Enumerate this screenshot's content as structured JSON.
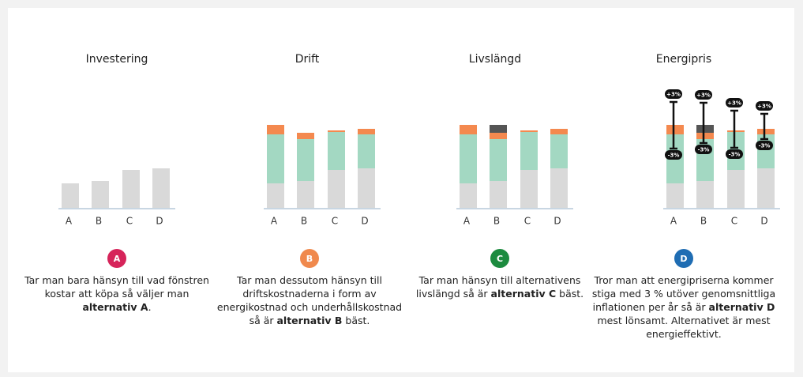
{
  "chart_data": [
    {
      "type": "bar",
      "title": "Investering",
      "categories": [
        "A",
        "B",
        "C",
        "D"
      ],
      "values": [
        31,
        34,
        48,
        50
      ],
      "color": "#d9d9d9",
      "ylim": [
        0,
        140
      ]
    },
    {
      "type": "stacked_bar",
      "title": "Drift",
      "categories": [
        "A",
        "B",
        "C",
        "D"
      ],
      "ylim": [
        0,
        140
      ],
      "series": [
        {
          "color": "#d9d9d9",
          "values": [
            31,
            34,
            48,
            50
          ]
        },
        {
          "color": "#a3d8c2",
          "values": [
            62,
            53,
            48,
            43
          ]
        },
        {
          "color": "#f4894f",
          "values": [
            12,
            8,
            2,
            7
          ]
        }
      ]
    },
    {
      "type": "stacked_bar",
      "title": "Livslängd",
      "categories": [
        "A",
        "B",
        "C",
        "D"
      ],
      "ylim": [
        0,
        140
      ],
      "series": [
        {
          "color": "#d9d9d9",
          "values": [
            31,
            34,
            48,
            50
          ]
        },
        {
          "color": "#a3d8c2",
          "values": [
            62,
            53,
            48,
            43
          ]
        },
        {
          "color": "#f4894f",
          "values": [
            12,
            8,
            2,
            7
          ]
        },
        {
          "color": "#555555",
          "values": [
            0,
            10,
            0,
            0
          ]
        }
      ]
    },
    {
      "type": "stacked_bar",
      "title": "Energipris",
      "categories": [
        "A",
        "B",
        "C",
        "D"
      ],
      "ylim": [
        0,
        140
      ],
      "series": [
        {
          "color": "#d9d9d9",
          "values": [
            31,
            34,
            48,
            50
          ]
        },
        {
          "color": "#a3d8c2",
          "values": [
            62,
            53,
            48,
            43
          ]
        },
        {
          "color": "#f4894f",
          "values": [
            12,
            8,
            2,
            7
          ]
        },
        {
          "color": "#555555",
          "values": [
            0,
            10,
            0,
            0
          ]
        }
      ],
      "ranges": {
        "high": [
          134,
          133,
          123,
          119
        ],
        "low": [
          75,
          82,
          76,
          87
        ],
        "high_label": "+3%",
        "low_label": "-3%"
      }
    }
  ],
  "panels": [
    {
      "badge": "A",
      "color": "#d6245a",
      "parts": [
        {
          "text": "Tar man bara hänsyn till vad fönstren kostar att köpa så väljer man ",
          "bold": false
        },
        {
          "text": "alternativ A",
          "bold": true
        },
        {
          "text": ".",
          "bold": false
        }
      ]
    },
    {
      "badge": "B",
      "color": "#f0894d",
      "parts": [
        {
          "text": "Tar man dessutom hänsyn till driftskostnaderna i form av energikostnad och underhållskostnad så är ",
          "bold": false
        },
        {
          "text": "alternativ B",
          "bold": true
        },
        {
          "text": " bäst.",
          "bold": false
        }
      ]
    },
    {
      "badge": "C",
      "color": "#1c8b3f",
      "parts": [
        {
          "text": "Tar man hänsyn till alternativens livslängd så är ",
          "bold": false
        },
        {
          "text": "alternativ C",
          "bold": true
        },
        {
          "text": " bäst.",
          "bold": false
        }
      ]
    },
    {
      "badge": "D",
      "color": "#1f6db3",
      "parts": [
        {
          "text": "Tror man att energipriserna kommer stiga med 3 % utöver genomsnittliga inflationen per år så är ",
          "bold": false
        },
        {
          "text": "alternativ D",
          "bold": true
        },
        {
          "text": " mest lönsamt. Alternativet är mest energieffektivt.",
          "bold": false
        }
      ]
    }
  ]
}
